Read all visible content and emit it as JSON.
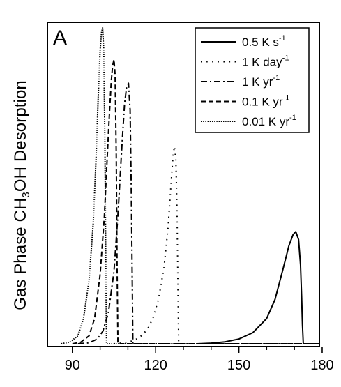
{
  "chart_data": {
    "type": "line",
    "panel_label": "A",
    "ylabel": {
      "main": "Gas Phase CH",
      "subscript": "3",
      "tail": "OH Desorption"
    },
    "xlabel": "",
    "xlim": [
      81,
      179
    ],
    "ylim": [
      0,
      1
    ],
    "x_ticks": [
      90,
      120,
      150,
      180
    ],
    "x_minor_ticks": [
      100,
      110,
      130,
      140,
      160,
      170
    ],
    "grid": false,
    "legend": {
      "position": "top-right",
      "entries": [
        {
          "text": "0.5 K s",
          "superscript": "-1",
          "dash": "solid"
        },
        {
          "text": "1 K day",
          "superscript": "-1",
          "dash": "dot"
        },
        {
          "text": "1 K yr",
          "superscript": "-1",
          "dash": "dashdot"
        },
        {
          "text": "0.1 K yr",
          "superscript": "-1",
          "dash": "dash"
        },
        {
          "text": "0.01 K yr",
          "superscript": "-1",
          "dash": "shortdot"
        }
      ]
    },
    "series": [
      {
        "name": "0.5 K s-1",
        "dash": "solid",
        "x": [
          135,
          140,
          145,
          150,
          155,
          160,
          163,
          166,
          168,
          169.5,
          170.5,
          171.5,
          172.2,
          172.6,
          172.9,
          173.2,
          175,
          179
        ],
        "y": [
          0,
          0.002,
          0.006,
          0.015,
          0.035,
          0.08,
          0.14,
          0.24,
          0.31,
          0.345,
          0.355,
          0.33,
          0.25,
          0.15,
          0.06,
          0,
          0,
          0
        ]
      },
      {
        "name": "1 K day-1",
        "dash": "dot",
        "x": [
          105,
          110,
          114,
          117,
          119,
          121,
          123,
          124.5,
          125.5,
          126.3,
          126.8,
          127.3,
          127.7,
          128,
          128.3,
          130,
          179
        ],
        "y": [
          0,
          0.004,
          0.018,
          0.045,
          0.08,
          0.14,
          0.24,
          0.37,
          0.5,
          0.6,
          0.625,
          0.58,
          0.42,
          0.2,
          0,
          0,
          0
        ]
      },
      {
        "name": "1 K yr-1",
        "dash": "dashdot",
        "x": [
          92,
          96,
          99,
          101,
          103,
          105,
          106.5,
          107.8,
          108.8,
          109.5,
          110.2,
          110.8,
          111.2,
          111.5,
          111.8,
          113,
          179
        ],
        "y": [
          0,
          0.003,
          0.015,
          0.04,
          0.1,
          0.23,
          0.42,
          0.62,
          0.76,
          0.81,
          0.825,
          0.74,
          0.5,
          0.25,
          0,
          0,
          0
        ]
      },
      {
        "name": "0.1 K yr-1",
        "dash": "dash",
        "x": [
          90,
          93,
          96,
          98,
          100,
          101.5,
          102.5,
          103.3,
          104,
          104.5,
          105,
          105.4,
          105.8,
          106.1,
          106.4,
          108,
          179
        ],
        "y": [
          0,
          0.005,
          0.025,
          0.08,
          0.22,
          0.4,
          0.58,
          0.72,
          0.83,
          0.88,
          0.9,
          0.85,
          0.6,
          0.25,
          0,
          0,
          0
        ]
      },
      {
        "name": "0.01 K yr-1",
        "dash": "shortdot",
        "x": [
          86,
          89,
          92,
          94,
          96,
          97.5,
          98.5,
          99.3,
          100,
          100.5,
          100.9,
          101.3,
          101.7,
          102,
          102.3,
          104,
          179
        ],
        "y": [
          0,
          0.005,
          0.025,
          0.08,
          0.2,
          0.38,
          0.58,
          0.78,
          0.93,
          0.985,
          1.0,
          0.93,
          0.65,
          0.3,
          0,
          0,
          0
        ]
      }
    ]
  }
}
